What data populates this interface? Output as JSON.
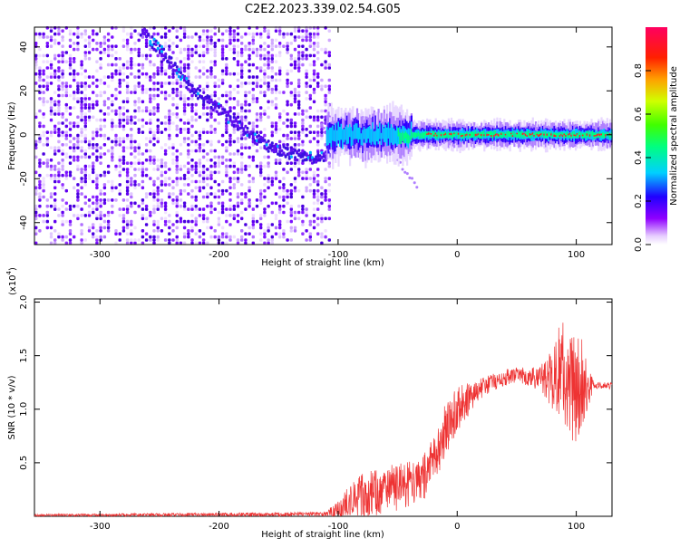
{
  "title": "C2E2.2023.339.02.54.G05",
  "chart_data": [
    {
      "type": "heatmap",
      "xlabel": "Height of straight line (km)",
      "ylabel": "Frequency (Hz)",
      "xlim": [
        -355,
        130
      ],
      "ylim": [
        -50,
        49
      ],
      "x_ticks": [
        -300,
        -200,
        -100,
        0,
        100
      ],
      "y_ticks": [
        -40,
        -20,
        0,
        20,
        40
      ],
      "colorbar": {
        "label": "Normalized spectral amplitude",
        "range": [
          0,
          1
        ],
        "ticks": [
          "0.0",
          "0.2",
          "0.4",
          "0.6",
          "0.8"
        ],
        "colormap": "rainbow"
      },
      "features": {
        "noisy_region_x": [
          -355,
          -107
        ],
        "signal_trace": [
          {
            "x": -270,
            "y": 50
          },
          {
            "x": -245,
            "y": 36
          },
          {
            "x": -225,
            "y": 22
          },
          {
            "x": -205,
            "y": 14
          },
          {
            "x": -185,
            "y": 5
          },
          {
            "x": -170,
            "y": -1
          },
          {
            "x": -155,
            "y": -6
          },
          {
            "x": -140,
            "y": -8
          },
          {
            "x": -120,
            "y": -10
          },
          {
            "x": -107,
            "y": -8
          }
        ],
        "secondary_trace": [
          {
            "x": -115,
            "y": 4
          },
          {
            "x": -100,
            "y": 0
          },
          {
            "x": -80,
            "y": 0
          },
          {
            "x": -60,
            "y": -4
          },
          {
            "x": -45,
            "y": -15
          },
          {
            "x": -35,
            "y": -24
          }
        ],
        "carrier_band": {
          "x_start": -110,
          "x_end": 130,
          "center_hz": 0,
          "width_hz": 3
        }
      }
    },
    {
      "type": "line",
      "xlabel": "Height of straight line (km)",
      "ylabel": "SNR (10 * v/v)",
      "y_multiplier": "(x10",
      "y_multiplier_exp": "4",
      "xlim": [
        -355,
        130
      ],
      "ylim": [
        0,
        2.03
      ],
      "x_ticks": [
        -300,
        -200,
        -100,
        0,
        100
      ],
      "y_ticks": [
        "0.5",
        "1.0",
        "1.5",
        "2.0"
      ],
      "color": "#ee3333",
      "series": [
        {
          "x": [
            -355,
            -110,
            -100,
            -90,
            -80,
            -70,
            -60,
            -50,
            -40,
            -30,
            -20,
            -10,
            0,
            10,
            20,
            30,
            40,
            50,
            60,
            70,
            80,
            85,
            90,
            95,
            100,
            105,
            110,
            115,
            130
          ],
          "y": [
            0.01,
            0.02,
            0.05,
            0.12,
            0.18,
            0.22,
            0.25,
            0.27,
            0.3,
            0.35,
            0.5,
            0.8,
            1.0,
            1.1,
            1.2,
            1.25,
            1.3,
            1.32,
            1.3,
            1.28,
            1.3,
            1.35,
            1.3,
            1.25,
            1.2,
            1.25,
            1.2,
            1.22,
            1.22
          ],
          "noise_amplitude": [
            0.01,
            0.02,
            0.1,
            0.18,
            0.22,
            0.22,
            0.22,
            0.22,
            0.22,
            0.22,
            0.25,
            0.25,
            0.22,
            0.15,
            0.1,
            0.08,
            0.08,
            0.08,
            0.08,
            0.12,
            0.3,
            0.45,
            0.55,
            0.6,
            0.5,
            0.4,
            0.2,
            0.03,
            0.03
          ]
        }
      ]
    }
  ]
}
